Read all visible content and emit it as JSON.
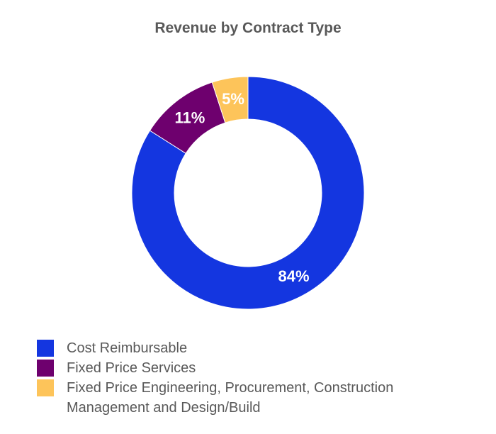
{
  "chart_data": {
    "type": "pie",
    "variant": "donut",
    "title": "Revenue by Contract Type",
    "slices": [
      {
        "name": "Cost Reimbursable",
        "value": 84,
        "label": "84%",
        "color": "#1436E0"
      },
      {
        "name": "Fixed Price Services",
        "value": 11,
        "label": "11%",
        "color": "#6E006E"
      },
      {
        "name": "Fixed Price Engineering, Procurement, Construction Management and Design/Build",
        "value": 5,
        "label": "5%",
        "color": "#FDC45A"
      }
    ],
    "legend_position": "bottom-left"
  }
}
